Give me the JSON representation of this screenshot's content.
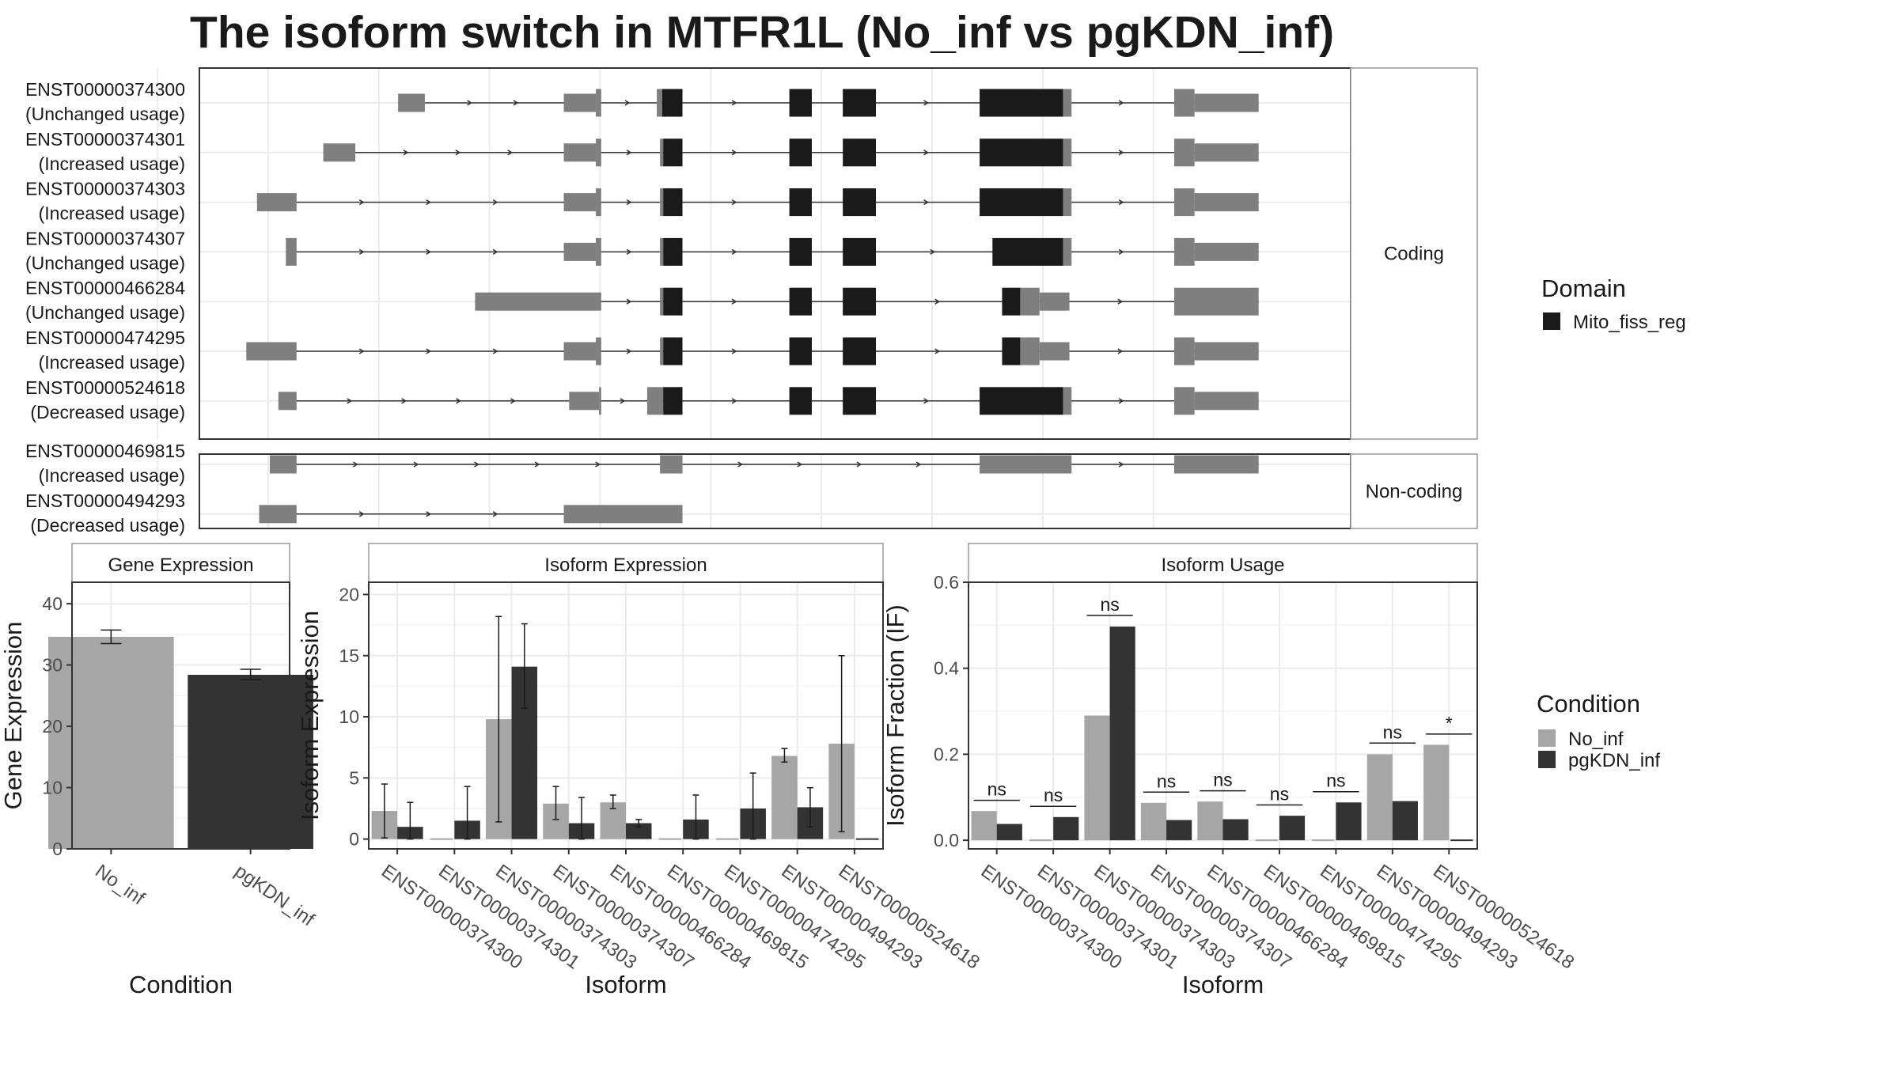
{
  "title": "The isoform switch in MTFR1L (No_inf vs pgKDN_inf)",
  "colors": {
    "domain": "#1a1a1a",
    "exon": "#7f7f7f",
    "no_inf": "#a6a6a6",
    "pgkdn_inf": "#333333"
  },
  "structure": {
    "x_domain": [
      0,
      100
    ],
    "groups": [
      {
        "label": "Coding",
        "transcripts": [
          {
            "id": "ENST00000374300",
            "usage": "(Unchanged usage)",
            "exons": [
              [
                14,
                16.5,
                "n"
              ],
              [
                29.5,
                32.5,
                "n"
              ],
              [
                32.5,
                33,
                "n"
              ],
              [
                38.2,
                38.7,
                "n"
              ],
              [
                38.7,
                40.6,
                "d"
              ],
              [
                50.6,
                52.7,
                "d"
              ],
              [
                55.6,
                58.7,
                "d"
              ],
              [
                68.4,
                76.2,
                "d"
              ],
              [
                76.2,
                77,
                "n"
              ],
              [
                86.6,
                88.5,
                "n"
              ],
              [
                88.5,
                94.5,
                "n"
              ]
            ]
          },
          {
            "id": "ENST00000374301",
            "usage": "(Increased usage)",
            "exons": [
              [
                7,
                10,
                "n"
              ],
              [
                29.5,
                32.5,
                "n"
              ],
              [
                32.5,
                33,
                "n"
              ],
              [
                38.5,
                38.8,
                "n"
              ],
              [
                38.8,
                40.6,
                "d"
              ],
              [
                50.6,
                52.7,
                "d"
              ],
              [
                55.6,
                58.7,
                "d"
              ],
              [
                68.4,
                76.2,
                "d"
              ],
              [
                76.2,
                77,
                "n"
              ],
              [
                86.6,
                88.5,
                "n"
              ],
              [
                88.5,
                94.5,
                "n"
              ]
            ]
          },
          {
            "id": "ENST00000374303",
            "usage": "(Increased usage)",
            "exons": [
              [
                0.8,
                4.5,
                "n"
              ],
              [
                29.5,
                32.5,
                "n"
              ],
              [
                32.5,
                33,
                "n"
              ],
              [
                38.5,
                38.8,
                "n"
              ],
              [
                38.8,
                40.6,
                "d"
              ],
              [
                50.6,
                52.7,
                "d"
              ],
              [
                55.6,
                58.7,
                "d"
              ],
              [
                68.4,
                76.2,
                "d"
              ],
              [
                76.2,
                77,
                "n"
              ],
              [
                86.6,
                88.5,
                "n"
              ],
              [
                88.5,
                94.5,
                "n"
              ]
            ]
          },
          {
            "id": "ENST00000374307",
            "usage": "(Unchanged usage)",
            "exons": [
              [
                3.5,
                4.5,
                "n"
              ],
              [
                29.5,
                32.5,
                "n"
              ],
              [
                32.5,
                33,
                "n"
              ],
              [
                38.5,
                38.8,
                "n"
              ],
              [
                38.8,
                40.6,
                "d"
              ],
              [
                50.6,
                52.7,
                "d"
              ],
              [
                55.6,
                58.7,
                "d"
              ],
              [
                69.6,
                76.2,
                "d"
              ],
              [
                76.2,
                77,
                "n"
              ],
              [
                86.6,
                88.5,
                "n"
              ],
              [
                88.5,
                94.5,
                "n"
              ]
            ]
          },
          {
            "id": "ENST00000466284",
            "usage": "(Unchanged usage)",
            "exons": [
              [
                21.2,
                33,
                "n"
              ],
              [
                38.5,
                38.8,
                "n"
              ],
              [
                38.8,
                40.6,
                "d"
              ],
              [
                50.6,
                52.7,
                "d"
              ],
              [
                55.6,
                58.7,
                "d"
              ],
              [
                70.5,
                72.2,
                "d"
              ],
              [
                72.2,
                74,
                "n"
              ],
              [
                74,
                76.8,
                "n"
              ],
              [
                86.6,
                94.5,
                "n"
              ]
            ]
          },
          {
            "id": "ENST00000474295",
            "usage": "(Increased usage)",
            "exons": [
              [
                -0.2,
                4.5,
                "n"
              ],
              [
                29.5,
                32.5,
                "n"
              ],
              [
                32.5,
                33,
                "n"
              ],
              [
                38.5,
                38.8,
                "n"
              ],
              [
                38.8,
                40.6,
                "d"
              ],
              [
                50.6,
                52.7,
                "d"
              ],
              [
                55.6,
                58.7,
                "d"
              ],
              [
                70.5,
                72.2,
                "d"
              ],
              [
                72.2,
                74,
                "n"
              ],
              [
                74,
                76.8,
                "n"
              ],
              [
                86.6,
                88.5,
                "n"
              ],
              [
                88.5,
                94.5,
                "n"
              ]
            ]
          },
          {
            "id": "ENST00000524618",
            "usage": "(Decreased usage)",
            "exons": [
              [
                2.8,
                4.5,
                "n"
              ],
              [
                30,
                32.8,
                "n"
              ],
              [
                32.8,
                33,
                "n"
              ],
              [
                37.3,
                38.8,
                "n"
              ],
              [
                38.8,
                40.6,
                "d"
              ],
              [
                50.6,
                52.7,
                "d"
              ],
              [
                55.6,
                58.7,
                "d"
              ],
              [
                68.4,
                76.2,
                "d"
              ],
              [
                76.2,
                77,
                "n"
              ],
              [
                86.6,
                88.5,
                "n"
              ],
              [
                88.5,
                94.5,
                "n"
              ]
            ]
          }
        ]
      },
      {
        "label": "Non-coding",
        "transcripts": [
          {
            "id": "ENST00000469815",
            "usage": "(Increased usage)",
            "exons": [
              [
                2,
                4.5,
                "n"
              ],
              [
                38.5,
                40.6,
                "n"
              ],
              [
                68.4,
                77,
                "n"
              ],
              [
                86.6,
                94.5,
                "n"
              ]
            ]
          },
          {
            "id": "ENST00000494293",
            "usage": "(Decreased usage)",
            "exons": [
              [
                1,
                4.5,
                "n"
              ],
              [
                29.5,
                40.6,
                "n"
              ]
            ]
          }
        ]
      }
    ]
  },
  "legends": {
    "domain": {
      "title": "Domain",
      "items": [
        "Mito_fiss_reg"
      ]
    },
    "condition": {
      "title": "Condition",
      "items": [
        "No_inf",
        "pgKDN_inf"
      ]
    }
  },
  "chart_data": [
    {
      "type": "bar",
      "title": "Gene Expression",
      "xlabel": "Condition",
      "ylabel": "Gene Expression",
      "ylim": [
        0,
        43.5
      ],
      "yticks": [
        0,
        10,
        20,
        30,
        40
      ],
      "categories": [
        "No_inf",
        "pgKDN_inf"
      ],
      "values": [
        34.6,
        28.4
      ],
      "errors": [
        [
          33.5,
          35.7
        ],
        [
          27.6,
          29.3
        ]
      ]
    },
    {
      "type": "bar",
      "title": "Isoform Expression",
      "xlabel": "Isoform",
      "ylabel": "Isoform Expression",
      "ylim": [
        -0.8,
        21
      ],
      "yticks": [
        0,
        5,
        10,
        15,
        20
      ],
      "categories": [
        "ENST00000374300",
        "ENST00000374301",
        "ENST00000374303",
        "ENST00000374307",
        "ENST00000466284",
        "ENST00000469815",
        "ENST00000474295",
        "ENST00000494293",
        "ENST00000524618"
      ],
      "series": [
        {
          "name": "No_inf",
          "values": [
            2.3,
            0,
            9.8,
            2.9,
            3.0,
            0,
            0,
            6.8,
            7.8
          ],
          "errors": [
            [
              0.1,
              4.5
            ],
            null,
            [
              1.4,
              18.2
            ],
            [
              1.6,
              4.3
            ],
            [
              2.5,
              3.6
            ],
            null,
            null,
            [
              6.3,
              7.4
            ],
            [
              0.6,
              15.0
            ]
          ]
        },
        {
          "name": "pgKDN_inf",
          "values": [
            1.0,
            1.5,
            14.1,
            1.3,
            1.3,
            1.6,
            2.5,
            2.6,
            0
          ],
          "errors": [
            [
              0,
              3.0
            ],
            [
              0,
              4.3
            ],
            [
              10.7,
              17.6
            ],
            [
              0,
              3.4
            ],
            [
              1.0,
              1.6
            ],
            [
              0,
              3.6
            ],
            [
              0,
              5.4
            ],
            [
              1.0,
              4.2
            ],
            null
          ]
        }
      ]
    },
    {
      "type": "bar",
      "title": "Isoform Usage",
      "xlabel": "Isoform",
      "ylabel": "Isoform Fraction (IF)",
      "ylim": [
        -0.02,
        0.6
      ],
      "yticks": [
        0,
        0.2,
        0.4,
        0.6
      ],
      "ytick_labels": [
        "0.0",
        "0.2",
        "0.4",
        "0.6"
      ],
      "categories": [
        "ENST00000374300",
        "ENST00000374301",
        "ENST00000374303",
        "ENST00000374307",
        "ENST00000466284",
        "ENST00000469815",
        "ENST00000474295",
        "ENST00000494293",
        "ENST00000524618"
      ],
      "series": [
        {
          "name": "No_inf",
          "values": [
            0.068,
            0,
            0.29,
            0.087,
            0.09,
            0,
            0,
            0.2,
            0.222
          ]
        },
        {
          "name": "pgKDN_inf",
          "values": [
            0.038,
            0.054,
            0.497,
            0.047,
            0.049,
            0.057,
            0.088,
            0.091,
            0
          ]
        }
      ],
      "significance": [
        "ns",
        "ns",
        "ns",
        "ns",
        "ns",
        "ns",
        "ns",
        "ns",
        "*"
      ],
      "sig_heights": [
        0.093,
        0.079,
        0.523,
        0.112,
        0.115,
        0.082,
        0.113,
        0.226,
        0.247
      ]
    }
  ]
}
